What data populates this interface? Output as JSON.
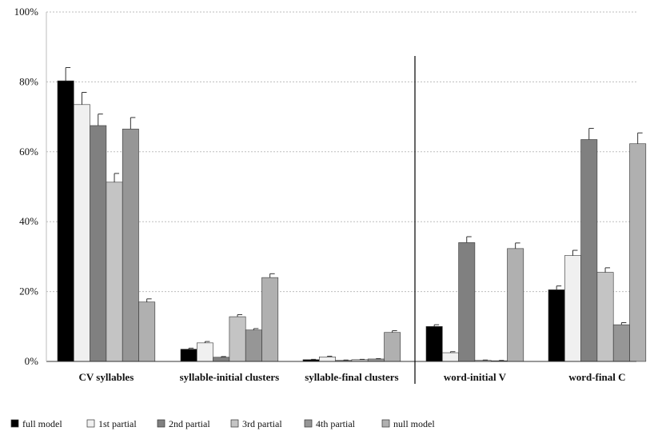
{
  "chart_data": {
    "type": "bar",
    "title": "",
    "xlabel": "",
    "ylabel": "",
    "ylim": [
      0,
      100
    ],
    "y_ticks": [
      "0%",
      "20%",
      "40%",
      "60%",
      "80%",
      "100%"
    ],
    "y_tick_values": [
      0,
      20,
      40,
      60,
      80,
      100
    ],
    "grid": "horizontal dashed",
    "legend_position": "bottom",
    "categories": [
      "CV syllables",
      "syllable-initial clusters",
      "syllable-final clusters",
      "word-initial V",
      "word-final C"
    ],
    "series": [
      {
        "name": "full model",
        "color": "#000000",
        "values": [
          80.3,
          3.5,
          0.5,
          10.0,
          20.5
        ],
        "errors": [
          3.8,
          0.3,
          0.1,
          0.5,
          1.1
        ]
      },
      {
        "name": "1st partial",
        "color": "#f0f0f0",
        "values": [
          73.5,
          5.3,
          1.3,
          2.5,
          30.3
        ],
        "errors": [
          3.5,
          0.4,
          0.2,
          0.3,
          1.5
        ]
      },
      {
        "name": "2nd partial",
        "color": "#808080",
        "values": [
          67.5,
          1.2,
          0.3,
          34.0,
          63.5
        ],
        "errors": [
          3.3,
          0.2,
          0.1,
          1.7,
          3.2
        ]
      },
      {
        "name": "3rd partial",
        "color": "#c4c4c4",
        "values": [
          51.3,
          12.8,
          0.5,
          0.3,
          25.5
        ],
        "errors": [
          2.5,
          0.6,
          0.1,
          0.1,
          1.3
        ]
      },
      {
        "name": "4th partial",
        "color": "#969696",
        "values": [
          66.5,
          9.0,
          0.7,
          0.2,
          10.5
        ],
        "errors": [
          3.3,
          0.4,
          0.1,
          0.1,
          0.6
        ]
      },
      {
        "name": "null model",
        "color": "#b0b0b0",
        "values": [
          17.0,
          24.0,
          8.3,
          32.3,
          62.3
        ],
        "errors": [
          0.9,
          1.1,
          0.5,
          1.6,
          3.1
        ]
      }
    ],
    "divider_after_category": 2
  }
}
